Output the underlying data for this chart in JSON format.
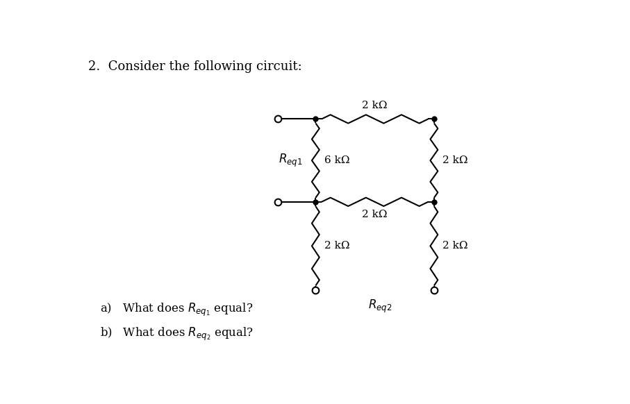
{
  "title": "2.  Consider the following circuit:",
  "question_a": "a)   What does $R_{eq_1}$ equal?",
  "question_b": "b)   What does $R_{eq_2}$ equal?",
  "bg_color": "#ffffff",
  "line_color": "#000000",
  "req1_label": "$R_{eq1}$",
  "req2_label": "$R_{eq2}$",
  "res_2k": "2 kΩ",
  "res_6k": "6 kΩ"
}
